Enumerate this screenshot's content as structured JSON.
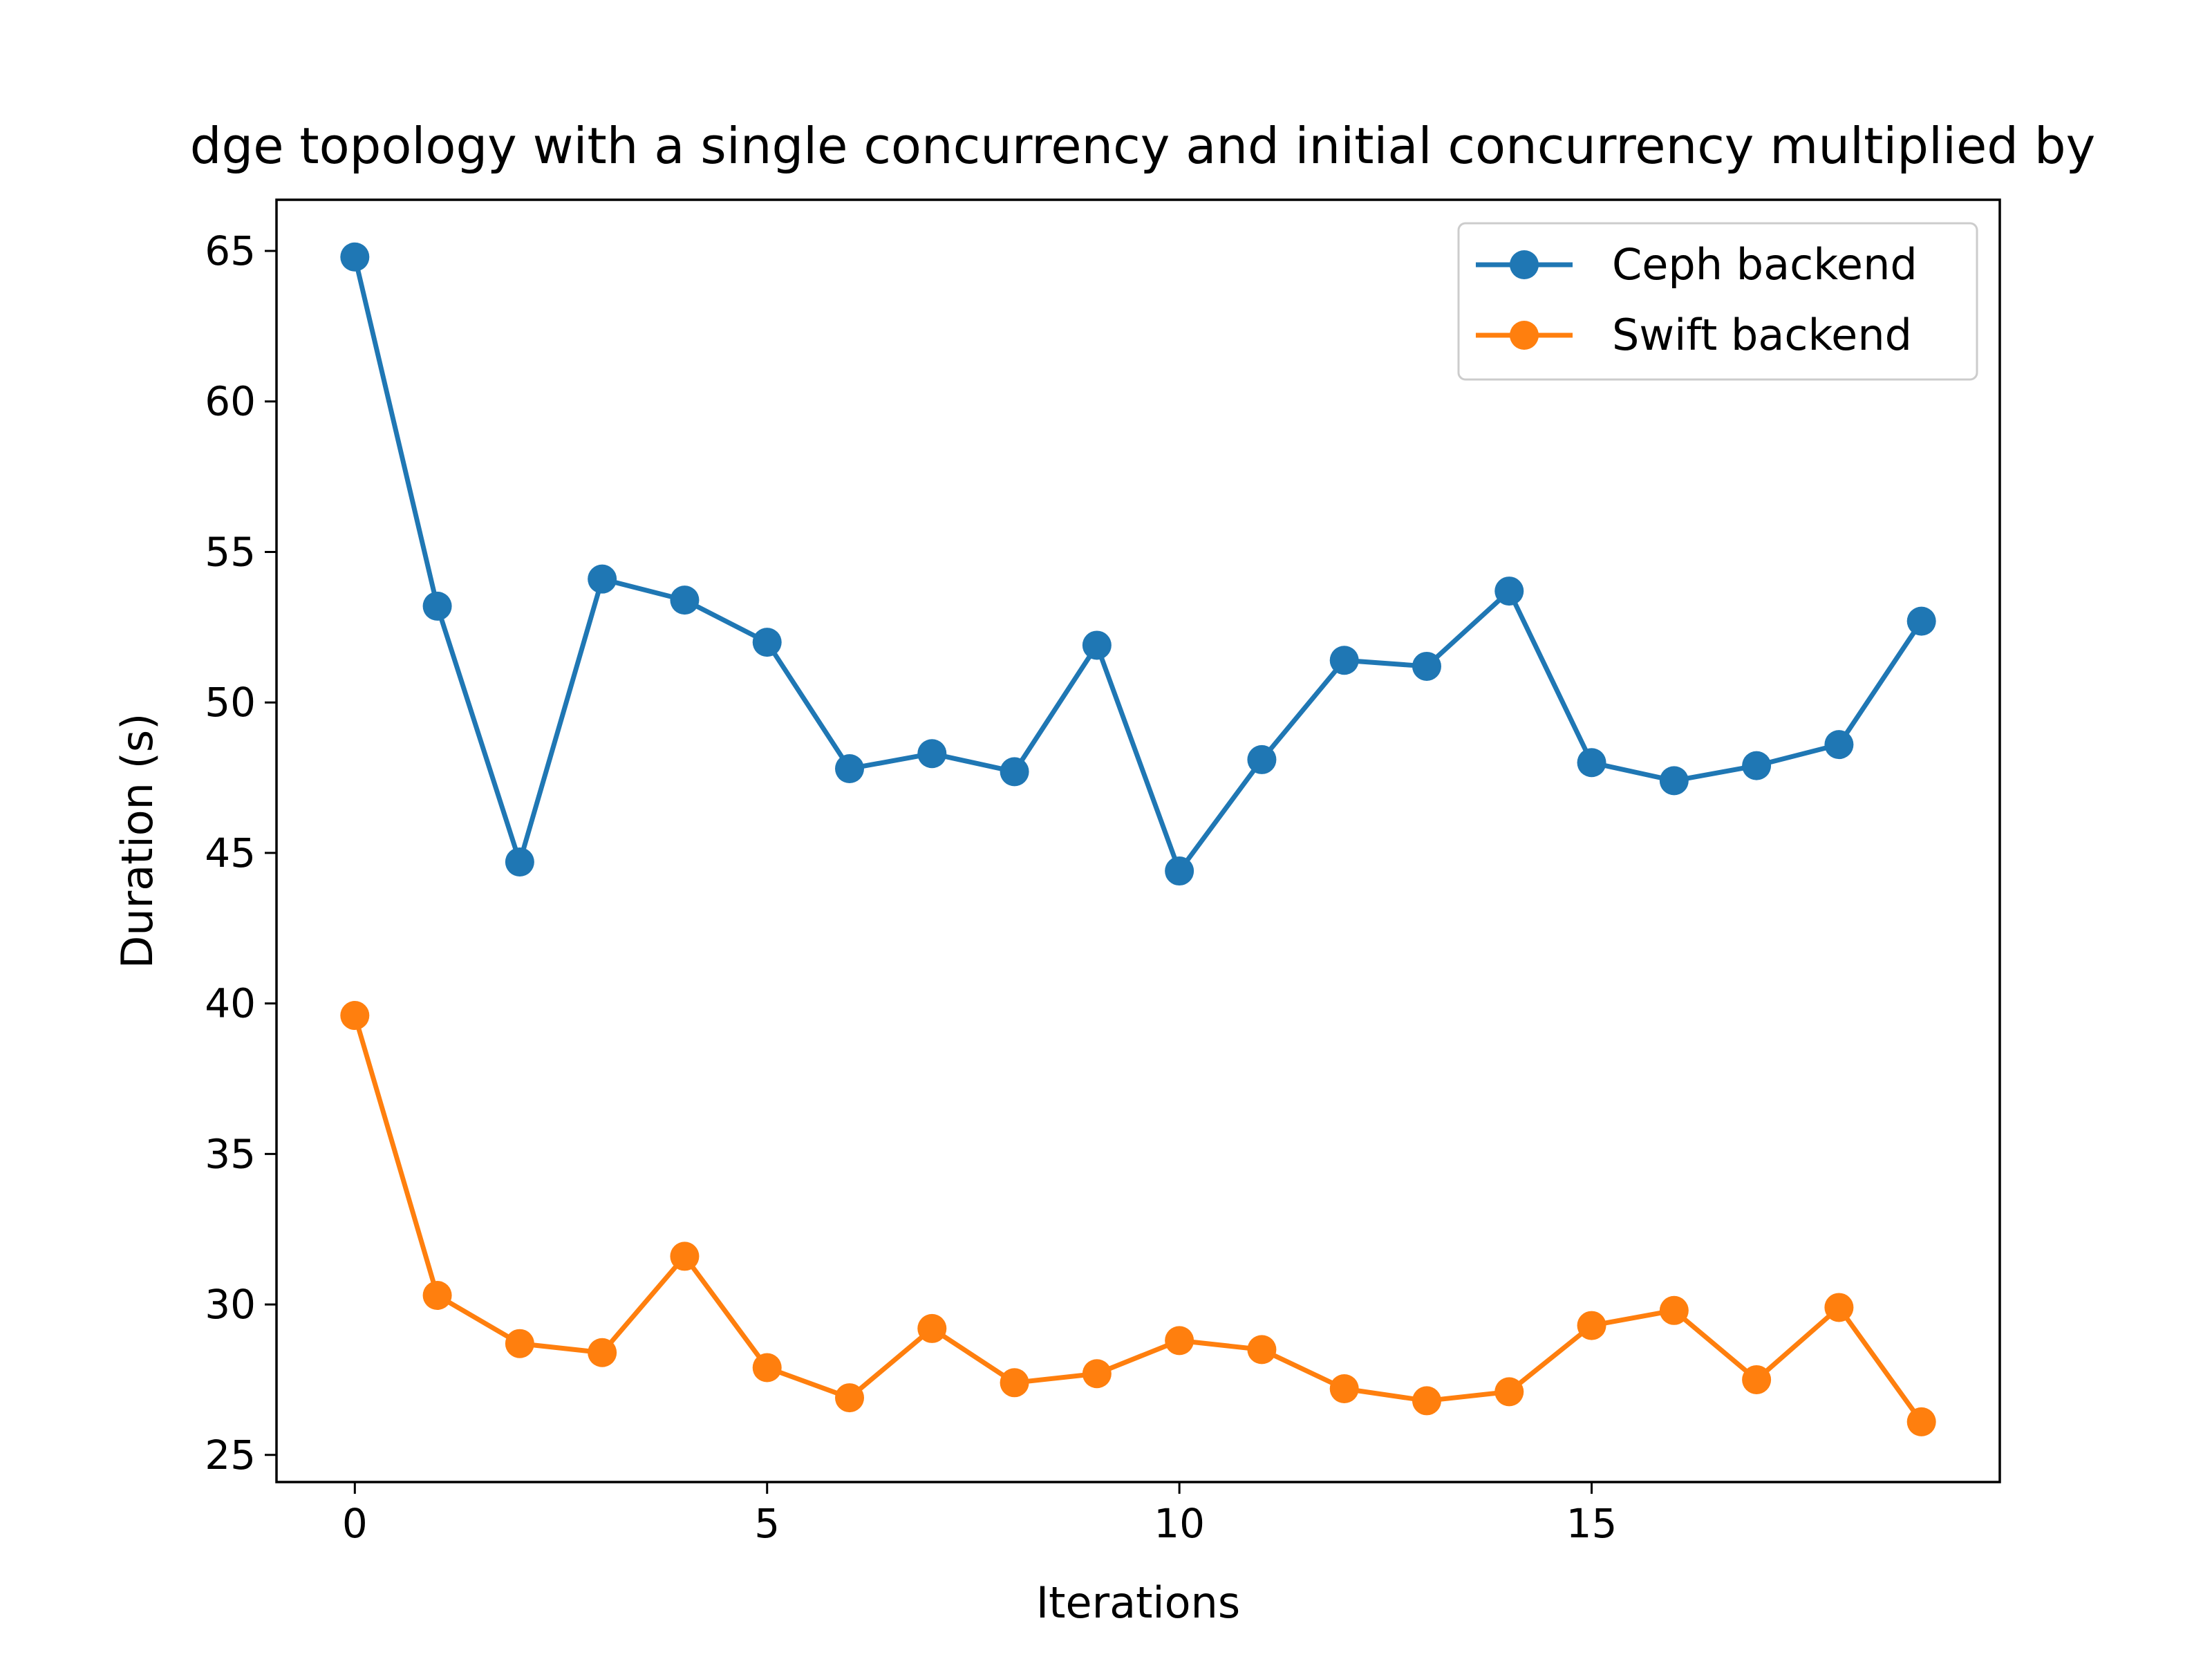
{
  "chart_data": {
    "type": "line",
    "title": "dge topology with a single concurrency and initial concurrency multiplied by",
    "xlabel": "Iterations",
    "ylabel": "Duration (s)",
    "xlim": [
      -0.95,
      19.95
    ],
    "ylim": [
      24.1,
      66.7
    ],
    "xticks": [
      0,
      5,
      10,
      15
    ],
    "yticks": [
      25,
      30,
      35,
      40,
      45,
      50,
      55,
      60,
      65
    ],
    "grid": false,
    "legend_position": "upper right",
    "x": [
      0,
      1,
      2,
      3,
      4,
      5,
      6,
      7,
      8,
      9,
      10,
      11,
      12,
      13,
      14,
      15,
      16,
      17,
      18,
      19
    ],
    "series": [
      {
        "name": "Ceph backend",
        "color": "#1f77b4",
        "marker": "circle",
        "values": [
          64.8,
          53.2,
          44.7,
          54.1,
          53.4,
          52.0,
          47.8,
          48.3,
          47.7,
          51.9,
          44.4,
          48.1,
          51.4,
          51.2,
          53.7,
          48.0,
          47.4,
          47.9,
          48.6,
          52.7
        ]
      },
      {
        "name": "Swift backend",
        "color": "#ff7f0e",
        "marker": "circle",
        "values": [
          39.6,
          30.3,
          28.7,
          28.4,
          31.6,
          27.9,
          26.9,
          29.2,
          27.4,
          27.7,
          28.8,
          28.5,
          27.2,
          26.8,
          27.1,
          29.3,
          29.8,
          27.5,
          29.9,
          26.1
        ]
      }
    ]
  }
}
